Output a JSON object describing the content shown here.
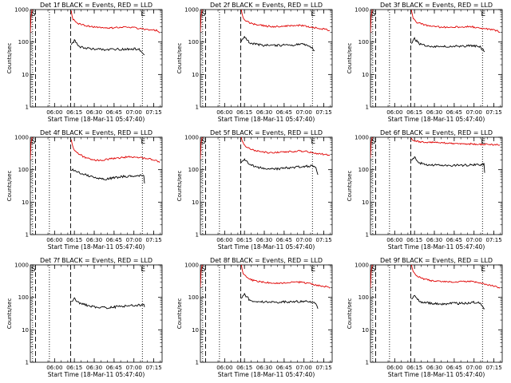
{
  "figure": {
    "ylabel": "Counts/sec",
    "xlabel": "Start Time (18-Mar-11 05:47:40)",
    "x_ticks": [
      {
        "min": 6,
        "label": "06:00"
      },
      {
        "min": 21,
        "label": "06:15"
      },
      {
        "min": 36,
        "label": "06:30"
      },
      {
        "min": 51,
        "label": "06:45"
      },
      {
        "min": 66,
        "label": "07:00"
      },
      {
        "min": 81,
        "label": "07:15"
      }
    ],
    "y_ticks": [
      {
        "value": 1,
        "label": "1"
      },
      {
        "value": 10,
        "label": "10"
      },
      {
        "value": 100,
        "label": "100"
      },
      {
        "value": 1000,
        "label": "1000"
      }
    ],
    "marker_labels": {
      "s": "S",
      "e": "E"
    },
    "series_colors": {
      "events": "#000000",
      "lld": "#e00000"
    }
  },
  "chart_data": [
    {
      "type": "line",
      "title": "Det 1f BLACK = Events, RED = LLD",
      "x_unit": "minutes after 18-Mar-11 05:47:40",
      "xlim": [
        -12.3,
        87.3
      ],
      "ylim": [
        1,
        1000
      ],
      "y_scale": "log",
      "markers": {
        "dotted": [
          -10.6,
          2.1,
          72.4
        ],
        "dashed": [
          -8.4,
          18.2
        ]
      },
      "events": {
        "x": [
          18.6,
          21,
          25,
          30,
          35,
          40,
          45,
          50,
          55,
          60,
          65,
          70,
          74
        ],
        "y": [
          80,
          110,
          72,
          64,
          62,
          60,
          58,
          60,
          60,
          60,
          62,
          60,
          40
        ]
      },
      "lld": {
        "x": [
          18.6,
          20,
          23,
          28,
          33,
          38,
          43,
          48,
          53,
          58,
          63,
          68,
          73,
          78,
          83,
          85.5
        ],
        "y": [
          900,
          500,
          380,
          330,
          300,
          290,
          280,
          270,
          280,
          285,
          290,
          270,
          250,
          240,
          230,
          190
        ]
      },
      "lld_pre": {
        "x": [
          -12.3,
          -11.8,
          -11,
          -10.6
        ],
        "y": [
          190,
          600,
          1000,
          1000
        ]
      }
    },
    {
      "type": "line",
      "title": "Det 2f BLACK = Events, RED = LLD",
      "x_unit": "minutes after 18-Mar-11 05:47:40",
      "xlim": [
        -12.3,
        87.3
      ],
      "ylim": [
        1,
        1000
      ],
      "y_scale": "log",
      "markers": {
        "dotted": [
          -10.6,
          2.1,
          72.4
        ],
        "dashed": [
          -8.4,
          18.2
        ]
      },
      "events": {
        "x": [
          18.6,
          21,
          25,
          30,
          35,
          40,
          45,
          50,
          55,
          60,
          65,
          70,
          74
        ],
        "y": [
          105,
          150,
          92,
          85,
          80,
          78,
          78,
          80,
          80,
          82,
          84,
          80,
          55
        ]
      },
      "lld": {
        "x": [
          18.6,
          20,
          23,
          28,
          33,
          38,
          43,
          48,
          53,
          58,
          63,
          68,
          73,
          78,
          83,
          85.5
        ],
        "y": [
          1000,
          560,
          420,
          360,
          330,
          310,
          300,
          300,
          310,
          320,
          330,
          300,
          280,
          260,
          245,
          230
        ]
      },
      "lld_pre": {
        "x": [
          -12.3,
          -11.8,
          -11,
          -10.6
        ],
        "y": [
          200,
          650,
          1000,
          1000
        ]
      }
    },
    {
      "type": "line",
      "title": "Det 3f BLACK = Events, RED = LLD",
      "x_unit": "minutes after 18-Mar-11 05:47:40",
      "xlim": [
        -12.3,
        87.3
      ],
      "ylim": [
        1,
        1000
      ],
      "y_scale": "log",
      "markers": {
        "dotted": [
          -10.6,
          2.1,
          72.4
        ],
        "dashed": [
          -8.4,
          18.2
        ]
      },
      "events": {
        "x": [
          18.6,
          21,
          25,
          30,
          35,
          40,
          45,
          50,
          55,
          60,
          65,
          70,
          74
        ],
        "y": [
          90,
          125,
          85,
          78,
          75,
          72,
          72,
          74,
          74,
          75,
          78,
          74,
          50
        ]
      },
      "lld": {
        "x": [
          18.6,
          20,
          23,
          28,
          33,
          38,
          43,
          48,
          53,
          58,
          63,
          68,
          73,
          78,
          83,
          85.5
        ],
        "y": [
          1000,
          520,
          400,
          340,
          310,
          295,
          285,
          280,
          290,
          295,
          300,
          280,
          260,
          245,
          225,
          200
        ]
      },
      "lld_pre": {
        "x": [
          -12.3,
          -11.8,
          -11,
          -10.6
        ],
        "y": [
          190,
          620,
          1000,
          1000
        ]
      }
    },
    {
      "type": "line",
      "title": "Det 4f BLACK = Events, RED = LLD",
      "x_unit": "minutes after 18-Mar-11 05:47:40",
      "xlim": [
        -12.3,
        87.3
      ],
      "ylim": [
        1,
        1000
      ],
      "y_scale": "log",
      "markers": {
        "dotted": [
          -10.6,
          2.1,
          72.4
        ],
        "dashed": [
          -8.4,
          18.2
        ]
      },
      "events": {
        "x": [
          18.6,
          21,
          25,
          30,
          35,
          40,
          45,
          50,
          55,
          60,
          65,
          70,
          73.5,
          74
        ],
        "y": [
          95,
          100,
          80,
          68,
          60,
          55,
          52,
          55,
          60,
          62,
          64,
          66,
          70,
          38
        ]
      },
      "lld": {
        "x": [
          18.6,
          20,
          23,
          28,
          33,
          38,
          43,
          48,
          53,
          58,
          63,
          68,
          73,
          78,
          83,
          85.5
        ],
        "y": [
          850,
          470,
          330,
          250,
          210,
          195,
          200,
          215,
          230,
          240,
          250,
          245,
          230,
          215,
          195,
          165
        ]
      },
      "lld_pre": {
        "x": [
          -12.3,
          -11.8,
          -11,
          -10.6
        ],
        "y": [
          200,
          650,
          1000,
          1000
        ]
      }
    },
    {
      "type": "line",
      "title": "Det 5f BLACK = Events, RED = LLD",
      "x_unit": "minutes after 18-Mar-11 05:47:40",
      "xlim": [
        -12.3,
        87.3
      ],
      "ylim": [
        1,
        1000
      ],
      "y_scale": "log",
      "markers": {
        "dotted": [
          -10.6,
          2.1,
          72.4
        ],
        "dashed": [
          -8.4,
          18.2
        ]
      },
      "events": {
        "x": [
          18.6,
          21,
          25,
          30,
          35,
          40,
          45,
          50,
          55,
          60,
          65,
          70,
          75,
          76.5
        ],
        "y": [
          170,
          210,
          140,
          120,
          110,
          105,
          105,
          110,
          115,
          120,
          125,
          130,
          125,
          70
        ]
      },
      "lld": {
        "x": [
          18.6,
          20,
          23,
          28,
          33,
          38,
          43,
          48,
          53,
          58,
          63,
          68,
          73,
          78,
          83,
          85.5
        ],
        "y": [
          1000,
          650,
          480,
          400,
          360,
          340,
          335,
          340,
          355,
          370,
          380,
          360,
          330,
          310,
          290,
          280
        ]
      },
      "lld_pre": {
        "x": [
          -12.3,
          -11.8,
          -11,
          -10.6
        ],
        "y": [
          210,
          650,
          1000,
          1000
        ]
      }
    },
    {
      "type": "line",
      "title": "Det 6f BLACK = Events, RED = LLD",
      "x_unit": "minutes after 18-Mar-11 05:47:40",
      "xlim": [
        -12.3,
        87.3
      ],
      "ylim": [
        1,
        1000
      ],
      "y_scale": "log",
      "markers": {
        "dotted": [
          -10.6,
          2.1,
          72.4
        ],
        "dashed": [
          -8.4,
          18.2
        ]
      },
      "events": {
        "x": [
          18.6,
          21,
          25,
          30,
          35,
          40,
          45,
          50,
          55,
          60,
          65,
          70,
          73.5,
          74
        ],
        "y": [
          200,
          240,
          160,
          145,
          140,
          135,
          132,
          135,
          137,
          138,
          140,
          140,
          150,
          80
        ]
      },
      "lld": {
        "x": [
          18.6,
          20,
          25,
          30,
          40,
          50,
          60,
          70,
          80,
          85.5
        ],
        "y": [
          900,
          800,
          720,
          700,
          680,
          650,
          630,
          610,
          590,
          580
        ]
      },
      "lld_pre": {
        "x": [
          -12.3,
          -11.8,
          -11,
          -10.6
        ],
        "y": [
          230,
          700,
          1000,
          1000
        ]
      }
    },
    {
      "type": "line",
      "title": "Det 7f BLACK = Events, RED = LLD",
      "x_unit": "minutes after 18-Mar-11 05:47:40",
      "xlim": [
        -12.3,
        87.3
      ],
      "ylim": [
        1,
        1000
      ],
      "y_scale": "log",
      "markers": {
        "dotted": [
          -10.6,
          2.1,
          72.4
        ],
        "dashed": [
          -8.4,
          18.2
        ]
      },
      "events": {
        "x": [
          18.6,
          21,
          25,
          30,
          35,
          40,
          45,
          50,
          55,
          60,
          65,
          70,
          73.5,
          74
        ],
        "y": [
          70,
          90,
          65,
          58,
          52,
          50,
          48,
          50,
          52,
          54,
          56,
          58,
          62,
          50
        ]
      },
      "lld": {
        "x": [],
        "y": []
      },
      "lld_pre": {
        "x": [],
        "y": []
      }
    },
    {
      "type": "line",
      "title": "Det 8f BLACK = Events, RED = LLD",
      "x_unit": "minutes after 18-Mar-11 05:47:40",
      "xlim": [
        -12.3,
        87.3
      ],
      "ylim": [
        1,
        1000
      ],
      "y_scale": "log",
      "markers": {
        "dotted": [
          -10.6,
          2.1,
          72.4
        ],
        "dashed": [
          -8.4,
          18.2
        ]
      },
      "events": {
        "x": [
          18.6,
          21,
          25,
          30,
          35,
          40,
          45,
          50,
          55,
          60,
          65,
          70,
          75,
          76.5
        ],
        "y": [
          90,
          125,
          82,
          75,
          72,
          70,
          70,
          72,
          72,
          74,
          76,
          72,
          68,
          45
        ]
      },
      "lld": {
        "x": [
          18.6,
          20,
          23,
          28,
          33,
          38,
          43,
          48,
          53,
          58,
          63,
          68,
          73,
          78,
          83,
          85.5
        ],
        "y": [
          1000,
          550,
          390,
          330,
          300,
          285,
          275,
          275,
          285,
          290,
          295,
          275,
          250,
          230,
          210,
          190
        ]
      },
      "lld_pre": {
        "x": [
          -12.3,
          -11.8,
          -11,
          -10.6
        ],
        "y": [
          200,
          640,
          1000,
          1000
        ]
      }
    },
    {
      "type": "line",
      "title": "Det 9f BLACK = Events, RED = LLD",
      "x_unit": "minutes after 18-Mar-11 05:47:40",
      "xlim": [
        -12.3,
        87.3
      ],
      "ylim": [
        1,
        1000
      ],
      "y_scale": "log",
      "markers": {
        "dotted": [
          -10.6,
          2.1,
          72.4
        ],
        "dashed": [
          -8.4,
          18.2
        ]
      },
      "events": {
        "x": [
          18.6,
          21,
          25,
          30,
          35,
          40,
          45,
          50,
          55,
          60,
          65,
          70,
          74
        ],
        "y": [
          85,
          110,
          75,
          68,
          65,
          63,
          63,
          65,
          65,
          67,
          70,
          68,
          45
        ]
      },
      "lld": {
        "x": [
          18.6,
          20,
          23,
          28,
          33,
          38,
          43,
          48,
          53,
          58,
          63,
          68,
          73,
          78,
          83,
          85.5
        ],
        "y": [
          1000,
          620,
          450,
          370,
          330,
          310,
          300,
          300,
          305,
          310,
          315,
          290,
          260,
          240,
          215,
          190
        ]
      },
      "lld_pre": {
        "x": [
          -12.3,
          -11.8,
          -11,
          -10.6
        ],
        "y": [
          190,
          620,
          1000,
          1000
        ]
      }
    }
  ]
}
